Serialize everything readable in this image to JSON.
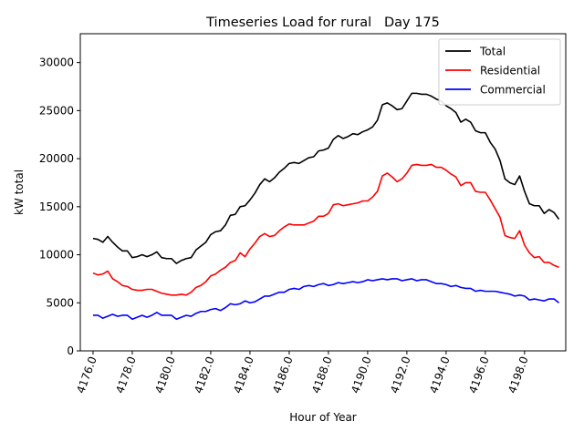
{
  "chart_data": {
    "type": "line",
    "title": "Timeseries Load for rural   Day 175",
    "xlabel": "Hour of Year",
    "ylabel": "kW total",
    "xlim": [
      4175.35,
      4200.1
    ],
    "ylim": [
      0,
      33000
    ],
    "xticks": [
      4176,
      4178,
      4180,
      4182,
      4184,
      4186,
      4188,
      4190,
      4192,
      4194,
      4196,
      4198
    ],
    "xtick_labels": [
      "4176.0",
      "4178.0",
      "4180.0",
      "4182.0",
      "4184.0",
      "4186.0",
      "4188.0",
      "4190.0",
      "4192.0",
      "4194.0",
      "4196.0",
      "4198.0"
    ],
    "yticks": [
      0,
      5000,
      10000,
      15000,
      20000,
      25000,
      30000
    ],
    "ytick_labels": [
      "0",
      "5000",
      "10000",
      "15000",
      "20000",
      "25000",
      "30000"
    ],
    "legend_position": "top-right",
    "x_start": 4176,
    "x_step": 0.25,
    "series": [
      {
        "name": "Total",
        "color": "#000000",
        "values": [
          11700,
          11600,
          11300,
          11900,
          11300,
          10800,
          10400,
          10400,
          9700,
          9800,
          10000,
          9800,
          10000,
          10300,
          9700,
          9600,
          9600,
          9100,
          9400,
          9600,
          9700,
          10500,
          10900,
          11300,
          12100,
          12400,
          12500,
          13100,
          14100,
          14200,
          15000,
          15100,
          15700,
          16400,
          17300,
          17900,
          17600,
          18000,
          18600,
          19000,
          19500,
          19600,
          19500,
          19800,
          20100,
          20200,
          20800,
          20900,
          21100,
          22000,
          22400,
          22100,
          22300,
          22600,
          22500,
          22800,
          23000,
          23300,
          24000,
          25600,
          25800,
          25500,
          25100,
          25200,
          26000,
          26800,
          26800,
          26700,
          26700,
          26500,
          26200,
          26000,
          25500,
          25200,
          24800,
          23800,
          24100,
          23800,
          22900,
          22700,
          22700,
          21700,
          21000,
          19800,
          17900,
          17500,
          17300,
          18200,
          16600,
          15300,
          15100,
          15100,
          14300,
          14700,
          14400,
          13700
        ]
      },
      {
        "name": "Residential",
        "color": "#ff0000",
        "values": [
          8100,
          7900,
          8000,
          8300,
          7500,
          7200,
          6800,
          6700,
          6400,
          6300,
          6300,
          6400,
          6400,
          6200,
          6000,
          5900,
          5800,
          5800,
          5900,
          5800,
          6100,
          6600,
          6800,
          7200,
          7800,
          8000,
          8400,
          8700,
          9200,
          9400,
          10200,
          9800,
          10600,
          11200,
          11900,
          12200,
          11900,
          12000,
          12500,
          12900,
          13200,
          13100,
          13100,
          13100,
          13300,
          13500,
          14000,
          14000,
          14300,
          15200,
          15300,
          15100,
          15200,
          15300,
          15400,
          15600,
          15600,
          16000,
          16600,
          18200,
          18500,
          18100,
          17600,
          17900,
          18500,
          19300,
          19400,
          19300,
          19300,
          19400,
          19100,
          19100,
          18800,
          18400,
          18100,
          17200,
          17500,
          17500,
          16600,
          16500,
          16500,
          15700,
          14800,
          13900,
          12000,
          11800,
          11700,
          12500,
          11000,
          10200,
          9700,
          9800,
          9200,
          9200,
          8900,
          8700
        ]
      },
      {
        "name": "Commercial",
        "color": "#0000ff",
        "values": [
          3700,
          3700,
          3400,
          3600,
          3800,
          3600,
          3700,
          3700,
          3300,
          3500,
          3700,
          3500,
          3700,
          4000,
          3700,
          3700,
          3700,
          3300,
          3500,
          3700,
          3600,
          3900,
          4100,
          4100,
          4300,
          4400,
          4200,
          4500,
          4900,
          4800,
          4900,
          5200,
          5000,
          5100,
          5400,
          5700,
          5700,
          5900,
          6100,
          6100,
          6400,
          6500,
          6400,
          6700,
          6800,
          6700,
          6900,
          7000,
          6800,
          6900,
          7100,
          7000,
          7100,
          7200,
          7100,
          7200,
          7400,
          7300,
          7400,
          7500,
          7400,
          7500,
          7500,
          7300,
          7400,
          7500,
          7300,
          7400,
          7400,
          7200,
          7000,
          7000,
          6900,
          6700,
          6800,
          6600,
          6500,
          6500,
          6200,
          6300,
          6200,
          6200,
          6200,
          6100,
          6000,
          5900,
          5700,
          5800,
          5700,
          5300,
          5400,
          5300,
          5200,
          5400,
          5400,
          5000
        ]
      }
    ]
  }
}
